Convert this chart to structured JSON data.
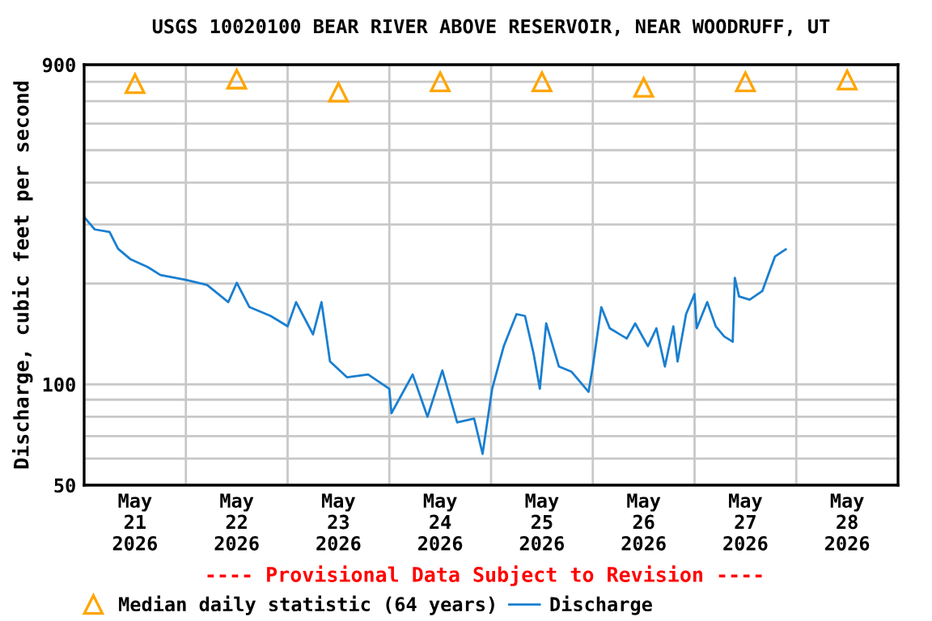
{
  "chart_data": {
    "type": "line",
    "title": "USGS 10020100 BEAR RIVER ABOVE RESERVOIR, NEAR WOODRUFF, UT",
    "ylabel": "Discharge, cubic feet per second",
    "annotations": [
      "---- Provisional Data Subject to Revision ----"
    ],
    "log": "y",
    "grid": true,
    "legend": "bottom",
    "line_style": "solid",
    "xlim": [
      "2026-05-21T00:00",
      "2026-05-29T00:00"
    ],
    "xticks": [
      {
        "value": "2026-05-21T12:00",
        "label": "May\n21\n2026"
      },
      {
        "value": "2026-05-22T00:00",
        "label": null
      },
      {
        "value": "2026-05-22T12:00",
        "label": "May\n22\n2026"
      },
      {
        "value": "2026-05-23T00:00",
        "label": null
      },
      {
        "value": "2026-05-23T12:00",
        "label": "May\n23\n2026"
      },
      {
        "value": "2026-05-24T00:00",
        "label": null
      },
      {
        "value": "2026-05-24T12:00",
        "label": "May\n24\n2026"
      },
      {
        "value": "2026-05-25T00:00",
        "label": null
      },
      {
        "value": "2026-05-25T12:00",
        "label": "May\n25\n2026"
      },
      {
        "value": "2026-05-26T00:00",
        "label": null
      },
      {
        "value": "2026-05-26T12:00",
        "label": "May\n26\n2026"
      },
      {
        "value": "2026-05-27T00:00",
        "label": null
      },
      {
        "value": "2026-05-27T12:00",
        "label": "May\n27\n2026"
      },
      {
        "value": "2026-05-28T00:00",
        "label": null
      },
      {
        "value": "2026-05-28T12:00",
        "label": "May\n28\n2026"
      }
    ],
    "ylim": [
      50,
      900
    ],
    "yticks": [
      50,
      {
        "value": 60,
        "label": null
      },
      {
        "value": 70,
        "label": null
      },
      {
        "value": 80,
        "label": null
      },
      {
        "value": 90,
        "label": null
      },
      100,
      {
        "value": 200,
        "label": null
      },
      {
        "value": 300,
        "label": null
      },
      {
        "value": 400,
        "label": null
      },
      {
        "value": 500,
        "label": null
      },
      {
        "value": 600,
        "label": null
      },
      {
        "value": 700,
        "label": null
      },
      {
        "value": 800,
        "label": null
      },
      900
    ],
    "series": [
      {
        "name": "Median daily statistic (64 years)",
        "type": "scatter",
        "marker": "triangle",
        "color": "#ffa500",
        "x": [
          "2026-05-21T12:00",
          "2026-05-22T12:00",
          "2026-05-23T12:00",
          "2026-05-24T12:00",
          "2026-05-25T12:00",
          "2026-05-26T12:00",
          "2026-05-27T12:00",
          "2026-05-28T12:00"
        ],
        "values": [
          790,
          815,
          745,
          800,
          800,
          770,
          800,
          810
        ]
      },
      {
        "name": "Discharge",
        "color": "#1a7fd0",
        "x": [
          "2026-05-21T00:00",
          "2026-05-21T02:30",
          "2026-05-21T06:00",
          "2026-05-21T08:00",
          "2026-05-21T11:00",
          "2026-05-21T15:00",
          "2026-05-21T18:00",
          "2026-05-22T00:00",
          "2026-05-22T05:00",
          "2026-05-22T10:00",
          "2026-05-22T12:00",
          "2026-05-22T15:00",
          "2026-05-22T20:00",
          "2026-05-23T00:00",
          "2026-05-23T02:00",
          "2026-05-23T06:00",
          "2026-05-23T08:00",
          "2026-05-23T10:00",
          "2026-05-23T14:00",
          "2026-05-23T19:00",
          "2026-05-24T00:00",
          "2026-05-24T00:30",
          "2026-05-24T05:30",
          "2026-05-24T09:00",
          "2026-05-24T12:30",
          "2026-05-24T16:00",
          "2026-05-24T20:00",
          "2026-05-24T22:00",
          "2026-05-25T00:15",
          "2026-05-25T02:00",
          "2026-05-25T03:00",
          "2026-05-25T06:00",
          "2026-05-25T08:00",
          "2026-05-25T10:00",
          "2026-05-25T11:30",
          "2026-05-25T13:00",
          "2026-05-25T16:00",
          "2026-05-25T19:00",
          "2026-05-25T23:00",
          "2026-05-26T00:00",
          "2026-05-26T02:00",
          "2026-05-26T04:00",
          "2026-05-26T08:00",
          "2026-05-26T10:00",
          "2026-05-26T13:00",
          "2026-05-26T15:00",
          "2026-05-26T17:00",
          "2026-05-26T19:00",
          "2026-05-26T20:00",
          "2026-05-26T22:00",
          "2026-05-27T00:00",
          "2026-05-27T00:30",
          "2026-05-27T03:00",
          "2026-05-27T05:00",
          "2026-05-27T07:00",
          "2026-05-27T09:00",
          "2026-05-27T09:30",
          "2026-05-27T10:30",
          "2026-05-27T13:00",
          "2026-05-27T16:00",
          "2026-05-27T18:00",
          "2026-05-27T19:00",
          "2026-05-27T21:30"
        ],
        "values": [
          316,
          290,
          285,
          254,
          236,
          224,
          212,
          205,
          198,
          176,
          201,
          170,
          160,
          149,
          176,
          141,
          176,
          117,
          105,
          107,
          97,
          82,
          107,
          80,
          110,
          77,
          79,
          62,
          97,
          117,
          130,
          162,
          160,
          124,
          97,
          152,
          113,
          109,
          95,
          113,
          170,
          147,
          137,
          152,
          130,
          147,
          113,
          149,
          117,
          162,
          186,
          147,
          176,
          149,
          139,
          134,
          208,
          183,
          179,
          190,
          223,
          241,
          253
        ]
      }
    ]
  }
}
